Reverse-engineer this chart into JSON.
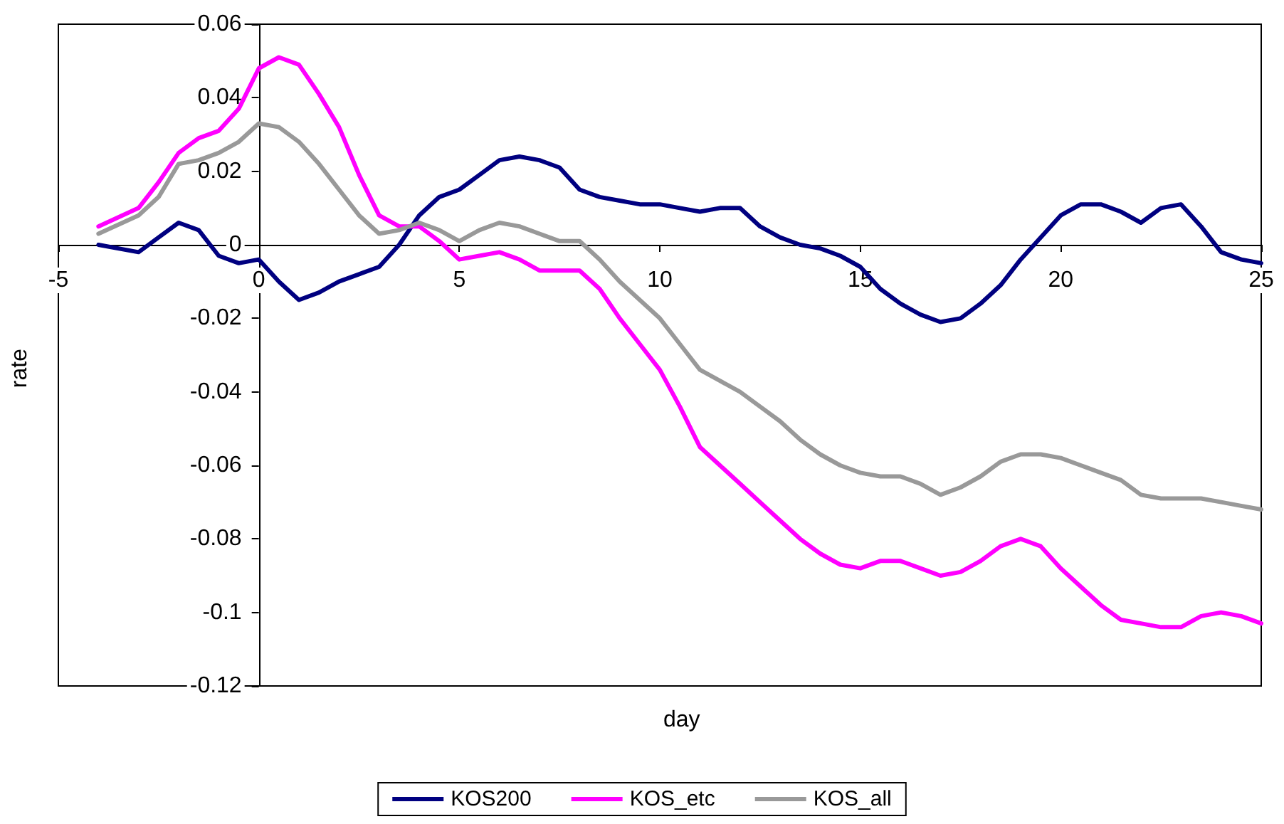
{
  "chart_data": {
    "type": "line",
    "xlabel": "day",
    "ylabel": "rate",
    "x": [
      -4,
      -3,
      -2.5,
      -2,
      -1.5,
      -1,
      -0.5,
      0,
      0.5,
      1,
      1.5,
      2,
      2.5,
      3,
      3.5,
      4,
      4.5,
      5,
      5.5,
      6,
      6.5,
      7,
      7.5,
      8,
      8.5,
      9,
      9.5,
      10,
      10.5,
      11,
      11.5,
      12,
      12.5,
      13,
      13.5,
      14,
      14.5,
      15,
      15.5,
      16,
      16.5,
      17,
      17.5,
      18,
      18.5,
      19,
      19.5,
      20,
      20.5,
      21,
      21.5,
      22,
      22.5,
      23,
      23.5,
      24,
      24.5,
      25
    ],
    "series": [
      {
        "name": "KOS200",
        "color": "#000080",
        "values": [
          0,
          -0.002,
          0.002,
          0.006,
          0.004,
          -0.003,
          -0.005,
          -0.004,
          -0.01,
          -0.015,
          -0.013,
          -0.01,
          -0.008,
          -0.006,
          0,
          0.008,
          0.013,
          0.015,
          0.019,
          0.023,
          0.024,
          0.023,
          0.021,
          0.015,
          0.013,
          0.012,
          0.011,
          0.011,
          0.01,
          0.009,
          0.01,
          0.01,
          0.005,
          0.002,
          0,
          -0.001,
          -0.003,
          -0.006,
          -0.012,
          -0.016,
          -0.019,
          -0.021,
          -0.02,
          -0.016,
          -0.011,
          -0.004,
          0.002,
          0.008,
          0.011,
          0.011,
          0.009,
          0.006,
          0.01,
          0.011,
          0.005,
          -0.002,
          -0.004,
          -0.005
        ]
      },
      {
        "name": "KOS_etc",
        "color": "#ff00ff",
        "values": [
          0.005,
          0.01,
          0.017,
          0.025,
          0.029,
          0.031,
          0.037,
          0.048,
          0.051,
          0.049,
          0.041,
          0.032,
          0.019,
          0.008,
          0.005,
          0.005,
          0.001,
          -0.004,
          -0.003,
          -0.002,
          -0.004,
          -0.007,
          -0.007,
          -0.007,
          -0.012,
          -0.02,
          -0.027,
          -0.034,
          -0.044,
          -0.055,
          -0.06,
          -0.065,
          -0.07,
          -0.075,
          -0.08,
          -0.084,
          -0.087,
          -0.088,
          -0.086,
          -0.086,
          -0.088,
          -0.09,
          -0.089,
          -0.086,
          -0.082,
          -0.08,
          -0.082,
          -0.088,
          -0.093,
          -0.098,
          -0.102,
          -0.103,
          -0.104,
          -0.104,
          -0.101,
          -0.1,
          -0.101,
          -0.103
        ]
      },
      {
        "name": "KOS_all",
        "color": "#999999",
        "values": [
          0.003,
          0.008,
          0.013,
          0.022,
          0.023,
          0.025,
          0.028,
          0.033,
          0.032,
          0.028,
          0.022,
          0.015,
          0.008,
          0.003,
          0.004,
          0.006,
          0.004,
          0.001,
          0.004,
          0.006,
          0.005,
          0.003,
          0.001,
          0.001,
          -0.004,
          -0.01,
          -0.015,
          -0.02,
          -0.027,
          -0.034,
          -0.037,
          -0.04,
          -0.044,
          -0.048,
          -0.053,
          -0.057,
          -0.06,
          -0.062,
          -0.063,
          -0.063,
          -0.065,
          -0.068,
          -0.066,
          -0.063,
          -0.059,
          -0.057,
          -0.057,
          -0.058,
          -0.06,
          -0.062,
          -0.064,
          -0.068,
          -0.069,
          -0.069,
          -0.069,
          -0.07,
          -0.071,
          -0.072
        ]
      }
    ],
    "xlim": [
      -5,
      25
    ],
    "xticks": [
      -5,
      0,
      5,
      10,
      15,
      20,
      25
    ],
    "ylim": [
      -0.12,
      0.06
    ],
    "yticks": [
      -0.12,
      -0.1,
      -0.08,
      -0.06,
      -0.04,
      -0.02,
      0,
      0.02,
      0.04,
      0.06
    ],
    "legend": "bottom",
    "marker": "none",
    "line_style": "solid"
  }
}
